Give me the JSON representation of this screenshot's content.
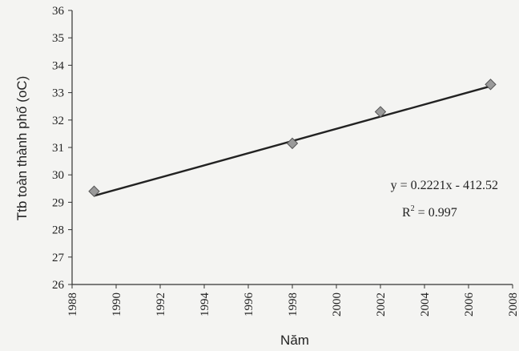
{
  "chart_data": {
    "type": "scatter",
    "title": "",
    "xlabel": "Năm",
    "ylabel": "Ttb toàn thành phố (oC)",
    "xlim": [
      1988,
      2008
    ],
    "ylim": [
      26,
      36
    ],
    "x_ticks": [
      "1988",
      "1990",
      "1992",
      "1994",
      "1996",
      "1998",
      "2000",
      "2002",
      "2004",
      "2006",
      "2008"
    ],
    "y_ticks": [
      "26",
      "27",
      "28",
      "29",
      "30",
      "31",
      "32",
      "33",
      "34",
      "35",
      "36"
    ],
    "grid": false,
    "series": [
      {
        "points": [
          {
            "x": 1989,
            "y": 29.4
          },
          {
            "x": 1998,
            "y": 31.15
          },
          {
            "x": 2002,
            "y": 32.3
          },
          {
            "x": 2007,
            "y": 33.3
          }
        ],
        "marker": "diamond",
        "color": "#9a9a9a"
      }
    ],
    "trendline": {
      "type": "linear",
      "slope": 0.2221,
      "intercept": -412.52,
      "x_range": [
        1989,
        2007
      ],
      "color": "#222222"
    },
    "annotations": {
      "equation": "y = 0.2221x - 412.52",
      "r2_prefix": "R",
      "r2_exp": "2",
      "r2_value": " = 0.997"
    }
  }
}
